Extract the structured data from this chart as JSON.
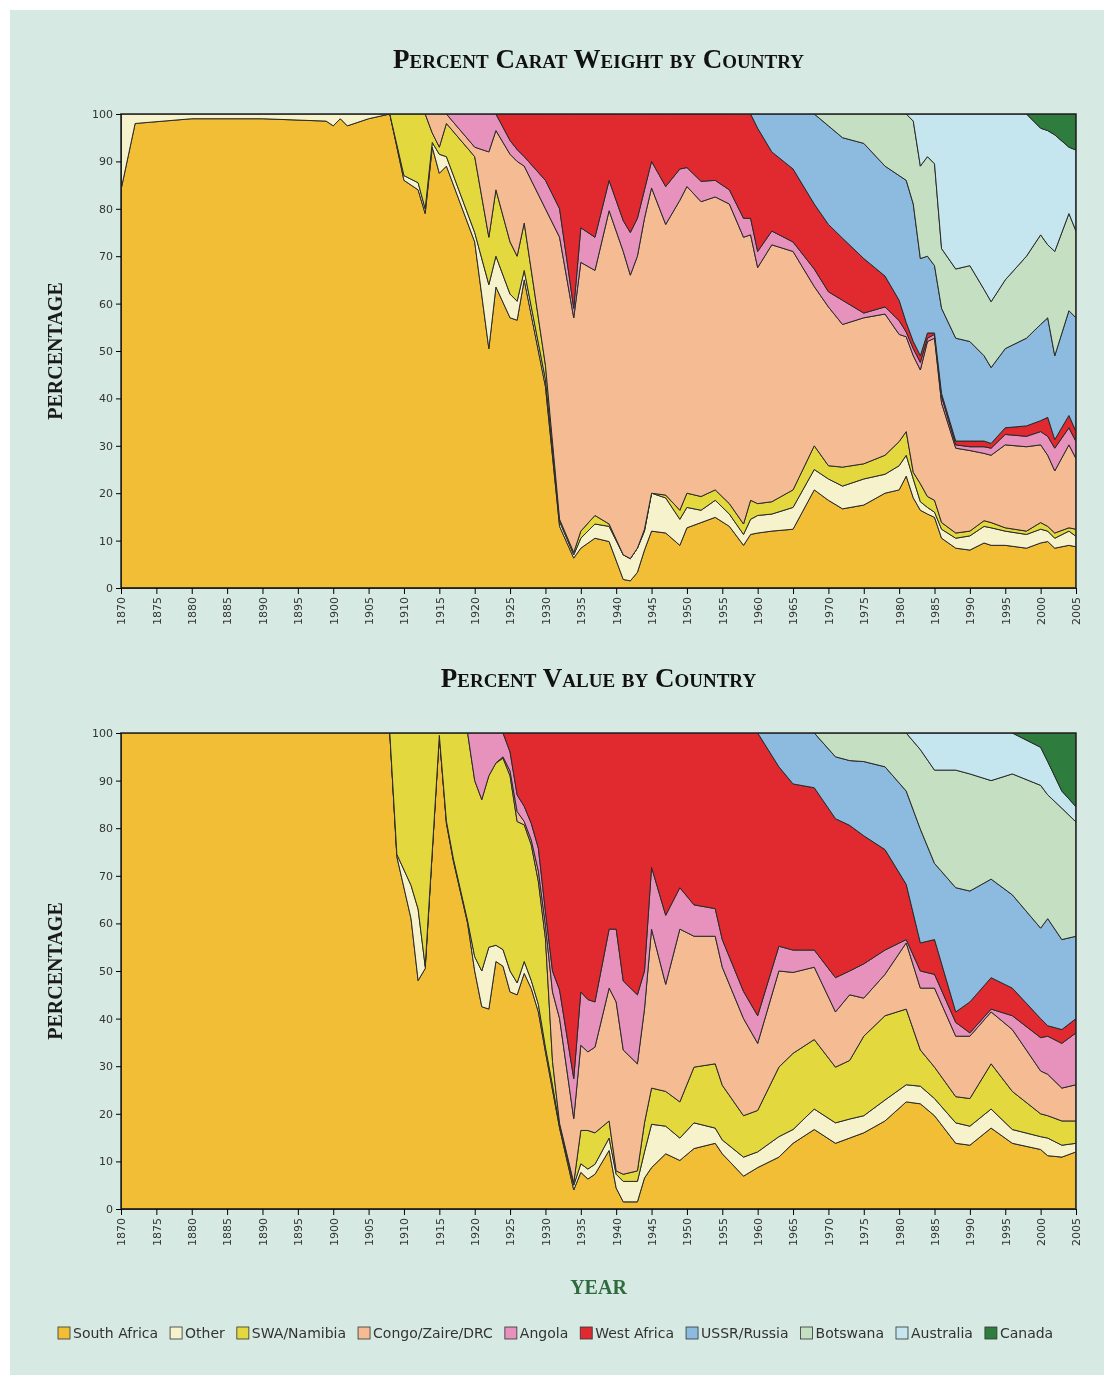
{
  "chart_data": [
    {
      "type": "area",
      "stacked": true,
      "title": "Percent Carat Weight by Country",
      "ylabel": "PERCENTAGE",
      "xlim": [
        1870,
        2005
      ],
      "xticks": [
        1870,
        1875,
        1880,
        1885,
        1890,
        1895,
        1900,
        1905,
        1910,
        1915,
        1920,
        1925,
        1930,
        1935,
        1940,
        1945,
        1950,
        1955,
        1960,
        1965,
        1970,
        1975,
        1980,
        1985,
        1990,
        1995,
        2000,
        2005
      ],
      "ylim": [
        0,
        100
      ],
      "yticks": [
        0,
        10,
        20,
        30,
        40,
        50,
        60,
        70,
        80,
        90,
        100
      ],
      "grid": false,
      "legend": "bottom",
      "x": [
        1870,
        1872,
        1880,
        1890,
        1899,
        1900,
        1901,
        1902,
        1905,
        1908,
        1910,
        1912,
        1913,
        1914,
        1915,
        1916,
        1920,
        1922,
        1923,
        1925,
        1926,
        1927,
        1930,
        1932,
        1934,
        1935,
        1937,
        1939,
        1941,
        1942,
        1943,
        1944,
        1945,
        1947,
        1949,
        1950,
        1952,
        1954,
        1956,
        1958,
        1959,
        1960,
        1962,
        1965,
        1968,
        1970,
        1972,
        1975,
        1978,
        1980,
        1981,
        1982,
        1983,
        1984,
        1985,
        1986,
        1988,
        1990,
        1992,
        1993,
        1995,
        1998,
        2000,
        2001,
        2002,
        2004,
        2005
      ],
      "series": [
        {
          "name": "South Africa",
          "color": "#f2be36",
          "values": [
            84,
            98,
            99,
            99,
            98.5,
            97.5,
            99,
            97.5,
            99,
            100,
            86,
            84,
            79,
            93,
            87.5,
            89,
            73,
            50.5,
            63.5,
            57,
            56.5,
            65,
            42.5,
            13,
            6.3,
            8.4,
            10.5,
            9.8,
            1.8,
            1.5,
            3.3,
            8,
            12,
            11.6,
            9,
            12.7,
            13.8,
            14.9,
            13,
            9,
            11.3,
            11.6,
            12,
            12.4,
            20.7,
            18.5,
            16.7,
            17.5,
            20,
            20.7,
            23.6,
            19,
            16.4,
            15.6,
            14.9,
            10.5,
            8.4,
            8,
            9.5,
            9,
            9,
            8.4,
            9.5,
            9.8,
            8.4,
            9,
            8.7
          ]
        },
        {
          "name": "Other",
          "color": "#f5f2cc",
          "values": [
            16,
            2,
            1,
            1,
            1.5,
            2.5,
            1,
            2.5,
            1,
            0,
            1,
            1.5,
            1,
            1,
            4,
            2,
            2,
            13.5,
            6.5,
            5,
            4,
            2,
            1.5,
            1,
            0.7,
            2.1,
            3,
            3.2,
            5.2,
            4.7,
            5.1,
            4,
            8,
            7.4,
            5.5,
            4.3,
            2.6,
            3.6,
            2.6,
            2.3,
            3.2,
            3.7,
            3.6,
            4.6,
            4.3,
            4.5,
            4.8,
            5.5,
            4,
            5.1,
            4.4,
            4,
            1.8,
            1.4,
            1.1,
            1.9,
            2.1,
            3,
            3.5,
            3.7,
            3,
            2.9,
            2.9,
            2.2,
            2.1,
            3,
            2.2
          ]
        },
        {
          "name": "SWA/Namibia",
          "color": "#e3d93e",
          "values": [
            null,
            null,
            null,
            null,
            null,
            null,
            null,
            null,
            null,
            0,
            13,
            14.5,
            20,
            2,
            1.5,
            7,
            16,
            10,
            14,
            11,
            9.5,
            10,
            3,
            0.5,
            0.5,
            1.5,
            1.8,
            0.5,
            0,
            0,
            0,
            0.4,
            0,
            0.6,
            1.9,
            3,
            2.9,
            2.2,
            2.2,
            2.2,
            4,
            2.5,
            2.6,
            3.7,
            5,
            2.8,
            4,
            3.2,
            4,
            5.1,
            5,
            1.4,
            3.8,
            2.3,
            2.5,
            1.4,
            1.1,
            1,
            1.2,
            1.1,
            0.7,
            0.7,
            1.4,
            1,
            1.1,
            0.7,
            1.5
          ]
        },
        {
          "name": "Congo/Zaire/DRC",
          "color": "#f5bc94",
          "values": [
            null,
            null,
            null,
            null,
            null,
            null,
            null,
            null,
            null,
            null,
            null,
            null,
            0,
            4,
            7,
            2,
            2,
            18,
            12.5,
            18.5,
            20,
            12,
            33,
            59.5,
            49.5,
            56.7,
            51.7,
            66.1,
            64,
            59.8,
            61.6,
            65.6,
            64.4,
            57.1,
            65.4,
            64.7,
            62.2,
            61.8,
            63.2,
            60.5,
            56,
            49.8,
            54.2,
            50.3,
            33.6,
            33.5,
            30.1,
            30.8,
            29.8,
            22.6,
            20,
            24.6,
            24,
            32.7,
            34.2,
            25.2,
            17.9,
            17,
            14.2,
            14.2,
            17.5,
            17.8,
            16.4,
            15,
            13.1,
            17.5,
            14.9
          ]
        },
        {
          "name": "Angola",
          "color": "#e692bc",
          "values": [
            null,
            null,
            null,
            null,
            null,
            null,
            null,
            null,
            null,
            null,
            null,
            null,
            null,
            null,
            null,
            0,
            7,
            8,
            3.5,
            2.9,
            2.5,
            2,
            6,
            6,
            2,
            7.3,
            7,
            6.4,
            6.5,
            9,
            8,
            6,
            5.6,
            8,
            6.6,
            4,
            4.3,
            3.5,
            3,
            4,
            3.5,
            3.4,
            2.9,
            2,
            3.7,
            3.2,
            5.1,
            1,
            1.5,
            2.9,
            1,
            1.5,
            1.6,
            0.7,
            0.8,
            1.4,
            0.7,
            0.8,
            1.4,
            1.5,
            2.2,
            2.2,
            2.8,
            4,
            4.8,
            3.6,
            3.6
          ]
        },
        {
          "name": "West Africa",
          "color": "#e02a30",
          "values": [
            null,
            null,
            null,
            null,
            null,
            null,
            null,
            null,
            null,
            null,
            null,
            null,
            null,
            null,
            null,
            null,
            null,
            null,
            0,
            5.6,
            7.5,
            9,
            14,
            20,
            41,
            24,
            26,
            14,
            22.5,
            25,
            22,
            16,
            10,
            15.3,
            11.6,
            11.3,
            14.2,
            14,
            16,
            22,
            22,
            26,
            16.7,
            15.4,
            13.7,
            14.2,
            13.1,
            11.5,
            6.5,
            4.3,
            2,
            1.5,
            1.4,
            1.1,
            0.3,
            0.6,
            0.8,
            1.2,
            1.2,
            1,
            1.4,
            2.2,
            2.3,
            4,
            1.8,
            2.6,
            2.1
          ]
        },
        {
          "name": "USSR/Russia",
          "color": "#8dbadf",
          "values": [
            null,
            null,
            null,
            null,
            null,
            null,
            null,
            null,
            null,
            null,
            null,
            null,
            null,
            null,
            null,
            null,
            null,
            null,
            null,
            null,
            null,
            null,
            null,
            null,
            null,
            null,
            null,
            null,
            null,
            null,
            null,
            null,
            null,
            null,
            null,
            null,
            null,
            null,
            null,
            null,
            0,
            3,
            8,
            11.6,
            19,
            20.8,
            21.2,
            24.3,
            23.2,
            26.3,
            30,
            29,
            20.5,
            16.2,
            14.2,
            18,
            21.7,
            21,
            18,
            16,
            16.7,
            18.5,
            20.3,
            21,
            17.7,
            22.1,
            24
          ]
        },
        {
          "name": "Botswana",
          "color": "#c5dfc2",
          "values": [
            null,
            null,
            null,
            null,
            null,
            null,
            null,
            null,
            null,
            null,
            null,
            null,
            null,
            null,
            null,
            null,
            null,
            null,
            null,
            null,
            null,
            null,
            null,
            null,
            null,
            null,
            null,
            null,
            null,
            null,
            null,
            null,
            null,
            null,
            null,
            null,
            null,
            null,
            null,
            null,
            null,
            null,
            null,
            null,
            0,
            2.5,
            5,
            6.2,
            11,
            13,
            14,
            17.5,
            19.5,
            21,
            21.5,
            12.6,
            14.6,
            16,
            14,
            13.9,
            14.5,
            17.3,
            18.9,
            15.4,
            22,
            20.5,
            18.3
          ]
        },
        {
          "name": "Australia",
          "color": "#c5e5ef",
          "values": [
            null,
            null,
            null,
            null,
            null,
            null,
            null,
            null,
            null,
            null,
            null,
            null,
            null,
            null,
            null,
            null,
            null,
            null,
            null,
            null,
            null,
            null,
            null,
            null,
            null,
            null,
            null,
            null,
            null,
            null,
            null,
            null,
            null,
            null,
            null,
            null,
            null,
            null,
            null,
            null,
            null,
            null,
            null,
            null,
            null,
            null,
            null,
            null,
            null,
            null,
            0,
            1.5,
            11,
            9,
            10.5,
            28.4,
            32.7,
            32,
            37,
            39.6,
            35,
            30,
            22.5,
            24.1,
            24.6,
            14,
            17.1
          ]
        },
        {
          "name": "Canada",
          "color": "#2e7d3e",
          "values": [
            null,
            null,
            null,
            null,
            null,
            null,
            null,
            null,
            null,
            null,
            null,
            null,
            null,
            null,
            null,
            null,
            null,
            null,
            null,
            null,
            null,
            null,
            null,
            null,
            null,
            null,
            null,
            null,
            null,
            null,
            null,
            null,
            null,
            null,
            null,
            null,
            null,
            null,
            null,
            null,
            null,
            null,
            null,
            null,
            null,
            null,
            null,
            null,
            null,
            null,
            null,
            null,
            null,
            null,
            null,
            null,
            null,
            null,
            null,
            null,
            null,
            0,
            3,
            3.5,
            4.4,
            7,
            7.6
          ]
        }
      ]
    },
    {
      "type": "area",
      "stacked": true,
      "title": "Percent Value by Country",
      "ylabel": "PERCENTAGE",
      "xlabel": "YEAR",
      "xlim": [
        1870,
        2005
      ],
      "xticks": [
        1870,
        1875,
        1880,
        1885,
        1890,
        1895,
        1900,
        1905,
        1910,
        1915,
        1920,
        1925,
        1930,
        1935,
        1940,
        1945,
        1950,
        1955,
        1960,
        1965,
        1970,
        1975,
        1980,
        1985,
        1990,
        1995,
        2000,
        2005
      ],
      "ylim": [
        0,
        100
      ],
      "yticks": [
        0,
        10,
        20,
        30,
        40,
        50,
        60,
        70,
        80,
        90,
        100
      ],
      "grid": false,
      "legend": "bottom",
      "x": [
        1870,
        1908,
        1909,
        1911,
        1912,
        1913,
        1915,
        1916,
        1917,
        1919,
        1920,
        1921,
        1922,
        1923,
        1924,
        1925,
        1926,
        1927,
        1928,
        1929,
        1930,
        1931,
        1932,
        1934,
        1935,
        1936,
        1937,
        1939,
        1940,
        1941,
        1943,
        1944,
        1945,
        1947,
        1949,
        1951,
        1954,
        1955,
        1958,
        1960,
        1963,
        1965,
        1968,
        1971,
        1973,
        1975,
        1978,
        1981,
        1983,
        1985,
        1988,
        1990,
        1993,
        1996,
        2000,
        2001,
        2003,
        2005
      ],
      "series": [
        {
          "name": "South Africa",
          "color": "#f2be36",
          "values": [
            100,
            100,
            74,
            61,
            48,
            50.5,
            99.5,
            81,
            73,
            60,
            50,
            42.5,
            42,
            52,
            51,
            45.6,
            45,
            49.5,
            46.3,
            41.4,
            33,
            25,
            17,
            4,
            7.7,
            6.3,
            7.3,
            12.3,
            4.4,
            1.5,
            1.5,
            6.5,
            8.7,
            11.6,
            10.2,
            12.7,
            13.8,
            11.6,
            6.9,
            8.7,
            10.9,
            13.8,
            16.7,
            13.8,
            14.9,
            16,
            18.5,
            22.5,
            22.1,
            19.6,
            13.8,
            13.4,
            17,
            13.8,
            12.5,
            11.2,
            10.9,
            12
          ]
        },
        {
          "name": "Other",
          "color": "#f5f2cc",
          "values": [
            null,
            0,
            0.5,
            7,
            15,
            0.5,
            0,
            0.5,
            0.5,
            0.5,
            3,
            7.5,
            13,
            3.4,
            3.5,
            4.4,
            2.5,
            2.5,
            1.7,
            1.6,
            1,
            1,
            0.5,
            1,
            1.8,
            2.1,
            2.1,
            2.6,
            2.9,
            4.3,
            4.3,
            5.5,
            9.1,
            5.8,
            4.7,
            5.4,
            3.2,
            2.9,
            4,
            3.3,
            4.3,
            2.9,
            4.3,
            4.3,
            4,
            3.6,
            4.4,
            3.6,
            3.7,
            3.6,
            4.3,
            4,
            4,
            2.9,
            2.7,
            3.7,
            2.5,
            1.8
          ]
        },
        {
          "name": "SWA/Namibia",
          "color": "#e3d93e",
          "values": [
            null,
            0,
            25.5,
            32,
            37,
            49,
            0.5,
            18.5,
            26.5,
            39.5,
            37,
            36,
            36,
            38.3,
            40.2,
            41,
            33.9,
            28.7,
            28.5,
            25.8,
            22.8,
            5,
            0.5,
            0.5,
            7,
            8.1,
            6.6,
            3.6,
            0.7,
            1.5,
            2.2,
            6.1,
            7.6,
            7.3,
            7.6,
            11.7,
            13.5,
            11.5,
            8.7,
            8.7,
            14.6,
            16,
            14.6,
            11.7,
            12.3,
            16.7,
            17.7,
            15.9,
            7.6,
            6.6,
            5.5,
            5.8,
            9.5,
            8,
            4.8,
            4.7,
            5.1,
            4.7
          ]
        },
        {
          "name": "Congo/Zaire/DRC",
          "color": "#f5bc94",
          "values": [
            null,
            null,
            null,
            null,
            null,
            null,
            null,
            null,
            null,
            null,
            null,
            null,
            null,
            0,
            0.3,
            1,
            2.1,
            0.7,
            1,
            2.2,
            2.8,
            14.6,
            22,
            13.5,
            17.9,
            16.5,
            18,
            27.9,
            35.5,
            26.1,
            22.5,
            23.9,
            33.4,
            22.5,
            36.3,
            27.5,
            26.8,
            24.8,
            20.4,
            14.1,
            20.2,
            17,
            15.2,
            11.6,
            13.8,
            8,
            8.7,
            13.9,
            13,
            16.6,
            12.7,
            13.1,
            10.9,
            13,
            9,
            8.7,
            6.9,
            7.6
          ]
        },
        {
          "name": "Angola",
          "color": "#e692bc",
          "values": [
            null,
            null,
            null,
            null,
            null,
            null,
            null,
            null,
            null,
            0,
            10,
            14,
            9,
            6.3,
            5,
            4,
            3.5,
            3.2,
            3.5,
            4.8,
            2.9,
            4.4,
            6,
            8.4,
            11.2,
            11,
            9.5,
            12.4,
            15.3,
            14.5,
            14.5,
            8,
            13,
            14.5,
            8.7,
            6.6,
            5.8,
            5.8,
            5.7,
            5.8,
            5.2,
            4.7,
            3.6,
            7.2,
            5,
            7.2,
            5.1,
            0.7,
            3.6,
            2.9,
            2.9,
            0.7,
            0.6,
            2.9,
            7,
            8,
            9.4,
            10.9
          ]
        },
        {
          "name": "West Africa",
          "color": "#e02a30",
          "values": [
            null,
            null,
            null,
            null,
            null,
            null,
            null,
            null,
            null,
            null,
            null,
            null,
            null,
            null,
            0,
            4,
            13,
            15.4,
            19,
            24.2,
            37.5,
            50,
            54,
            72.6,
            54.4,
            56,
            56.5,
            41.2,
            41.2,
            52.1,
            55,
            50,
            28.2,
            38.3,
            32.5,
            36.1,
            36.9,
            43.4,
            54.3,
            59.4,
            37.7,
            34.9,
            34.1,
            33.4,
            30.6,
            26.9,
            21.1,
            11.6,
            5.9,
            7.3,
            2.2,
            6.5,
            6.6,
            5.8,
            4,
            2.2,
            2.9,
            3
          ]
        },
        {
          "name": "USSR/Russia",
          "color": "#8dbadf",
          "values": [
            null,
            null,
            null,
            null,
            null,
            null,
            null,
            null,
            null,
            null,
            null,
            null,
            null,
            null,
            null,
            null,
            null,
            null,
            null,
            null,
            null,
            null,
            null,
            null,
            null,
            null,
            null,
            null,
            null,
            null,
            null,
            null,
            null,
            null,
            null,
            null,
            null,
            null,
            null,
            0,
            7.1,
            10.7,
            11.5,
            13,
            13.6,
            15.6,
            17.4,
            19.6,
            23.9,
            16,
            26.1,
            23.3,
            20.7,
            19.6,
            19,
            22.5,
            18.9,
            17.3
          ]
        },
        {
          "name": "Botswana",
          "color": "#c5dfc2",
          "values": [
            null,
            null,
            null,
            null,
            null,
            null,
            null,
            null,
            null,
            null,
            null,
            null,
            null,
            null,
            null,
            null,
            null,
            null,
            null,
            null,
            null,
            null,
            null,
            null,
            null,
            null,
            null,
            null,
            null,
            null,
            null,
            null,
            null,
            null,
            null,
            null,
            null,
            null,
            null,
            null,
            null,
            null,
            0,
            5,
            5.8,
            6,
            7.1,
            12.2,
            16.7,
            19.6,
            24.7,
            24.6,
            20.7,
            25.4,
            30,
            26,
            27.6,
            24
          ]
        },
        {
          "name": "Australia",
          "color": "#c5e5ef",
          "values": [
            null,
            null,
            null,
            null,
            null,
            null,
            null,
            null,
            null,
            null,
            null,
            null,
            null,
            null,
            null,
            null,
            null,
            null,
            null,
            null,
            null,
            null,
            null,
            null,
            null,
            null,
            null,
            null,
            null,
            null,
            null,
            null,
            null,
            null,
            null,
            null,
            null,
            null,
            null,
            null,
            null,
            null,
            null,
            null,
            null,
            null,
            null,
            0,
            3.5,
            7.8,
            7.8,
            8.6,
            10,
            8.6,
            8,
            7,
            3.6,
            3.2
          ]
        },
        {
          "name": "Canada",
          "color": "#2e7d3e",
          "values": [
            null,
            null,
            null,
            null,
            null,
            null,
            null,
            null,
            null,
            null,
            null,
            null,
            null,
            null,
            null,
            null,
            null,
            null,
            null,
            null,
            null,
            null,
            null,
            null,
            null,
            null,
            null,
            null,
            null,
            null,
            null,
            null,
            null,
            null,
            null,
            null,
            null,
            null,
            null,
            null,
            null,
            null,
            null,
            null,
            null,
            null,
            null,
            null,
            null,
            null,
            null,
            null,
            null,
            0,
            3,
            6,
            12.2,
            15.5
          ]
        }
      ]
    }
  ]
}
